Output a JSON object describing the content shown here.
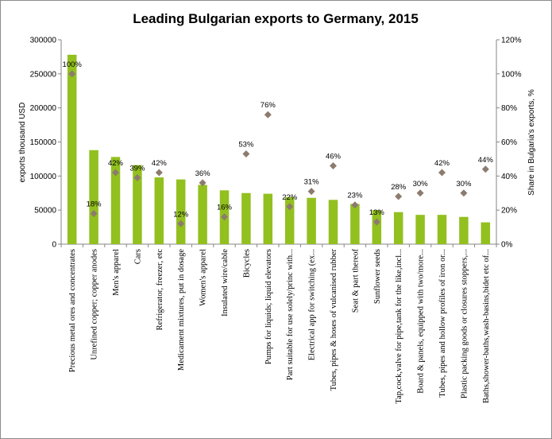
{
  "chart_data": {
    "type": "bar",
    "title": "Leading Bulgarian exports to Germany, 2015",
    "ylabel": "exports thousand USD",
    "y2label": "Share in Bulgaria's exports, %",
    "ylim": [
      0,
      300000
    ],
    "y2lim": [
      0,
      1.2
    ],
    "yticks": [
      "0",
      "50000",
      "100000",
      "150000",
      "200000",
      "250000",
      "300000"
    ],
    "y2ticks": [
      "0%",
      "20%",
      "40%",
      "60%",
      "80%",
      "100%",
      "120%"
    ],
    "grid": false,
    "legend": "none",
    "categories": [
      "Precious metal ores and concentrates",
      "Unrefined copper; copper anodes",
      "Men's apparel",
      "Cars",
      "Refrigerator, freezer, etc",
      "Medicament mixtures, put in dosage",
      "Women's apparel",
      "Insulated wire/cable",
      "Bicycles",
      "Pumps for liquids; liquid elevators",
      "Part suitable for use solely/princ with...",
      "Electrical app for switching (ex...",
      "Tubes, pipes & hoses of vulcanised rubber",
      "Seat & part thereof",
      "Sunflower seeds",
      "Tap,cock,valve for pipe,tank for the like,incl...",
      "Board & panels, equipped with two/more...",
      "Tubes, pipes and hollow profiles of iron or...",
      "Plastic packing goods or closures stoppers,...",
      "Baths,shower-baths,wash-basins,bidet etc of..."
    ],
    "series": [
      {
        "kind": "bar",
        "axis": "left",
        "color": "#92c01f",
        "values": [
          278000,
          138000,
          128000,
          116000,
          98000,
          95000,
          87000,
          79000,
          75000,
          74000,
          69000,
          68000,
          65000,
          59000,
          50000,
          47000,
          43000,
          43000,
          40000,
          32000
        ]
      },
      {
        "kind": "marker",
        "axis": "right",
        "color": "#8c7b6e",
        "values": [
          1.0,
          0.18,
          0.42,
          0.39,
          0.42,
          0.12,
          0.36,
          0.16,
          0.53,
          0.76,
          0.22,
          0.31,
          0.46,
          0.23,
          0.13,
          0.28,
          0.3,
          0.42,
          0.3,
          0.44
        ],
        "labels": [
          "100%",
          "18%",
          "42%",
          "39%",
          "42%",
          "12%",
          "36%",
          "16%",
          "53%",
          "76%",
          "22%",
          "31%",
          "46%",
          "23%",
          "13%",
          "28%",
          "30%",
          "42%",
          "30%",
          "44%"
        ]
      }
    ]
  }
}
